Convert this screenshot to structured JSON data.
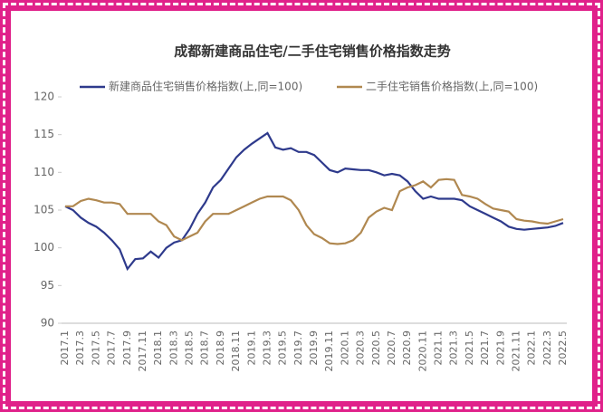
{
  "chart_data": {
    "type": "line",
    "title": "成都新建商品住宅/二手住宅销售价格指数走势",
    "categories": [
      "2017.1",
      null,
      "2017.3",
      null,
      "2017.5",
      null,
      "2017.7",
      null,
      "2017.9",
      null,
      "2017.11",
      null,
      "2018.1",
      null,
      "2018.3",
      null,
      "2018.5",
      null,
      "2018.7",
      null,
      "2018.9",
      null,
      "2018.11",
      null,
      "2019.1",
      null,
      "2019.3",
      null,
      "2019.5",
      null,
      "2019.7",
      null,
      "2019.9",
      null,
      "2019.11",
      null,
      "2020.1",
      null,
      "2020.3",
      null,
      "2020.5",
      null,
      "2020.7",
      null,
      "2020.9",
      null,
      "2020.11",
      null,
      "2021.1",
      null,
      "2021.3",
      null,
      "2021.5",
      null,
      "2021.7",
      null,
      "2021.9",
      null,
      "2021.11",
      null,
      "2022.1",
      null,
      "2022.3",
      null,
      "2022.5"
    ],
    "series": [
      {
        "name": "新建商品住宅销售价格指数(上,同=100)",
        "color": "#2e3a8c",
        "values": [
          105.5,
          105,
          104,
          103.3,
          102.8,
          102,
          101,
          99.8,
          97.2,
          98.5,
          98.6,
          99.5,
          98.7,
          100,
          100.7,
          101,
          102.5,
          104.5,
          106,
          108,
          109,
          110.5,
          112,
          113,
          113.8,
          114.5,
          115.2,
          113.3,
          113,
          113.2,
          112.7,
          112.7,
          112.3,
          111.3,
          110.3,
          110,
          110.5,
          110.4,
          110.3,
          110.3,
          110,
          109.6,
          109.8,
          109.6,
          108.8,
          107.5,
          106.5,
          106.8,
          106.5,
          106.5,
          106.5,
          106.3,
          105.5,
          105,
          104.5,
          104,
          103.5,
          102.8,
          102.5,
          102.4,
          102.5,
          102.6,
          102.7,
          102.9,
          103.3
        ]
      },
      {
        "name": "二手住宅销售价格指数(上,同=100)",
        "color": "#b08850",
        "values": [
          105.5,
          105.5,
          106.2,
          106.5,
          106.3,
          106,
          106,
          105.8,
          104.5,
          104.5,
          104.5,
          104.5,
          103.5,
          103,
          101.5,
          101,
          101.5,
          102,
          103.5,
          104.5,
          104.5,
          104.5,
          105,
          105.5,
          106,
          106.5,
          106.8,
          106.8,
          106.8,
          106.3,
          105,
          103,
          101.8,
          101.3,
          100.6,
          100.5,
          100.6,
          101,
          102,
          104,
          104.8,
          105.3,
          105,
          107.5,
          108,
          108.3,
          108.8,
          108,
          109,
          109.1,
          109,
          107,
          106.8,
          106.5,
          105.8,
          105.2,
          105,
          104.8,
          103.8,
          103.6,
          103.5,
          103.3,
          103.2,
          103.5,
          103.8
        ]
      }
    ],
    "ylim": [
      90,
      120
    ],
    "yticks": [
      90,
      95,
      100,
      105,
      110,
      115,
      120
    ]
  }
}
